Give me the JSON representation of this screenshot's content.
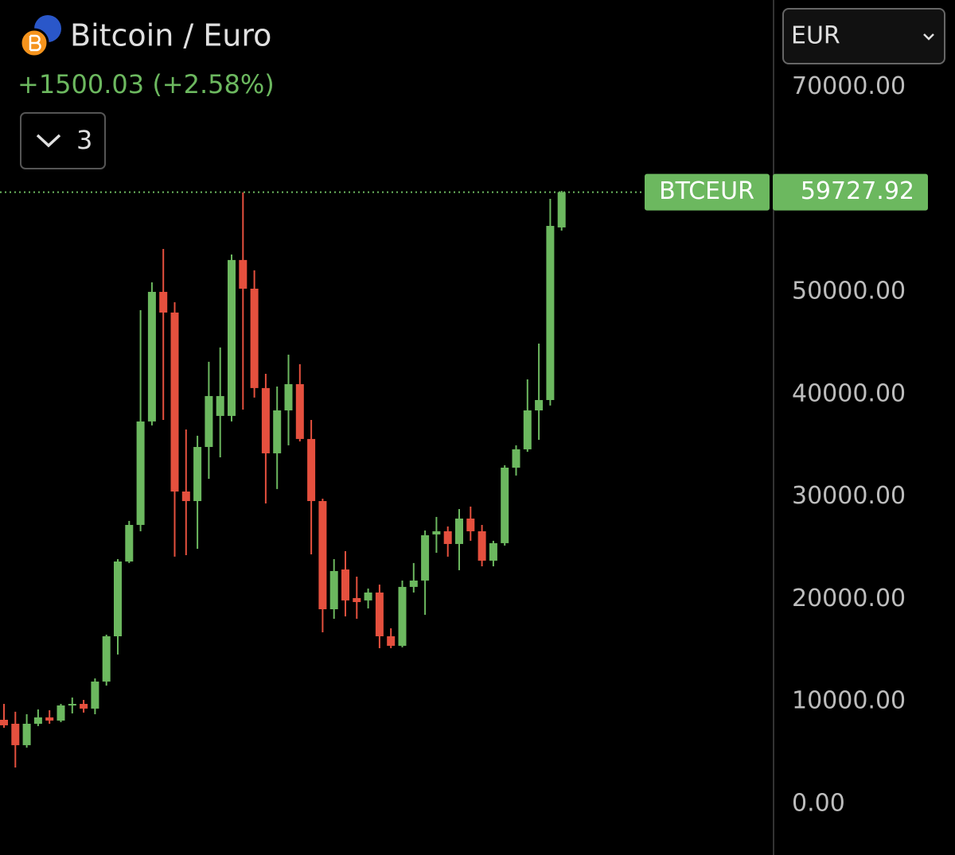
{
  "chart_data": {
    "type": "candlestick",
    "title": "Bitcoin / Euro",
    "subtitle": "+1500.03 (+2.58%)",
    "interval_button": "3",
    "currency": "EUR",
    "symbol": "BTCEUR",
    "up_color": "#6cb85f",
    "down_color": "#e5503e",
    "open": [
      8230,
      7840,
      5750,
      7840,
      8460,
      8150,
      9630,
      9780,
      9320,
      11960,
      16380,
      23680,
      27250,
      37350,
      50000,
      47980,
      30510,
      29580,
      34860,
      37890,
      37890,
      53110,
      50310,
      40610,
      34240,
      38430,
      40990,
      35640,
      29580,
      19020,
      22900,
      20110,
      19880,
      20650,
      16380,
      15450,
      21200,
      21820,
      26320,
      26630,
      25390,
      27870,
      26630,
      23760,
      25470,
      32840,
      34630,
      38430,
      39440,
      56290
    ],
    "high": [
      9780,
      9010,
      8770,
      9240,
      9160,
      9780,
      10400,
      10170,
      12270,
      16540,
      23910,
      27640,
      48210,
      50930,
      54190,
      48990,
      36570,
      35950,
      43170,
      44570,
      53650,
      59700,
      52100,
      42000,
      40760,
      43870,
      42940,
      37500,
      29810,
      23910,
      24690,
      22200,
      21040,
      21430,
      17160,
      21820,
      23530,
      26710,
      28030,
      27100,
      28800,
      29040,
      27250,
      25700,
      33070,
      35020,
      41460,
      44950,
      59080,
      59860
    ],
    "low": [
      7450,
      3570,
      5510,
      7610,
      7840,
      8000,
      8850,
      8930,
      8770,
      11570,
      14600,
      23530,
      26630,
      36960,
      37500,
      24150,
      24300,
      24920,
      31750,
      33850,
      37350,
      38510,
      39680,
      29350,
      30750,
      35020,
      35400,
      24380,
      16770,
      18090,
      18320,
      18090,
      19100,
      15220,
      15220,
      15300,
      20650,
      18480,
      24530,
      24150,
      22830,
      25700,
      23210,
      23210,
      25230,
      32070,
      34390,
      35560,
      38900,
      55980
    ],
    "close": [
      7690,
      5750,
      7840,
      8460,
      8150,
      9630,
      9780,
      9320,
      11960,
      16380,
      23680,
      27250,
      37350,
      50000,
      47980,
      30510,
      29580,
      34860,
      39830,
      39830,
      53110,
      50310,
      40610,
      34240,
      38430,
      40990,
      35640,
      29580,
      19020,
      22750,
      19880,
      19720,
      20650,
      16380,
      15450,
      21200,
      21820,
      26240,
      26630,
      25390,
      27870,
      26630,
      23760,
      25470,
      32840,
      34630,
      38430,
      39440,
      56440,
      59727.92
    ],
    "ylim": [
      -4970,
      78490
    ],
    "yticks": [
      {
        "value": 0,
        "label": "0.00"
      },
      {
        "value": 10000,
        "label": "10000.00"
      },
      {
        "value": 20000,
        "label": "20000.00"
      },
      {
        "value": 30000,
        "label": "30000.00"
      },
      {
        "value": 40000,
        "label": "40000.00"
      },
      {
        "value": 50000,
        "label": "50000.00"
      },
      {
        "value": 70000,
        "label": "70000.00"
      }
    ]
  }
}
